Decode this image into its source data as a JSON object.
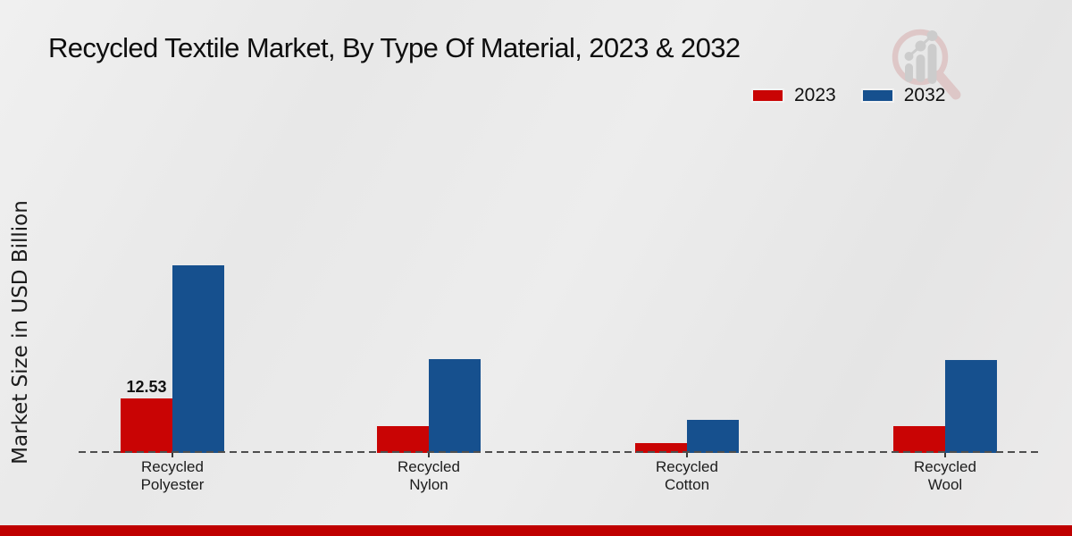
{
  "header": {
    "title": "Recycled Textile Market, By Type Of Material, 2023 & 2032"
  },
  "legend": {
    "items": [
      {
        "label": "2023",
        "color": "#c90404"
      },
      {
        "label": "2032",
        "color": "#16508e"
      }
    ]
  },
  "chart_data": {
    "type": "bar",
    "title": "Recycled Textile Market, By Type Of Material, 2023 & 2032",
    "xlabel": "",
    "ylabel": "Market Size in USD Billion",
    "categories": [
      "Recycled Polyester",
      "Recycled Nylon",
      "Recycled Cotton",
      "Recycled Wool"
    ],
    "series": [
      {
        "name": "2023",
        "color": "#c90404",
        "values": [
          12.53,
          6.1,
          2.2,
          6.1
        ]
      },
      {
        "name": "2032",
        "color": "#16508e",
        "values": [
          43.1,
          21.5,
          7.6,
          21.4
        ]
      }
    ],
    "value_labels": [
      {
        "category": "Recycled Polyester",
        "series": "2023",
        "text": "12.53"
      }
    ],
    "ylim": [
      0,
      45
    ],
    "grid": false,
    "legend_position": "top-right",
    "baseline_style": "dashed"
  },
  "watermark": {
    "icon": "magnifier-bar-chart-logo",
    "ring_color": "#dcc0c0",
    "bars_color": "#c6c6c6"
  },
  "footer": {
    "strip_color": "#bf0000"
  }
}
